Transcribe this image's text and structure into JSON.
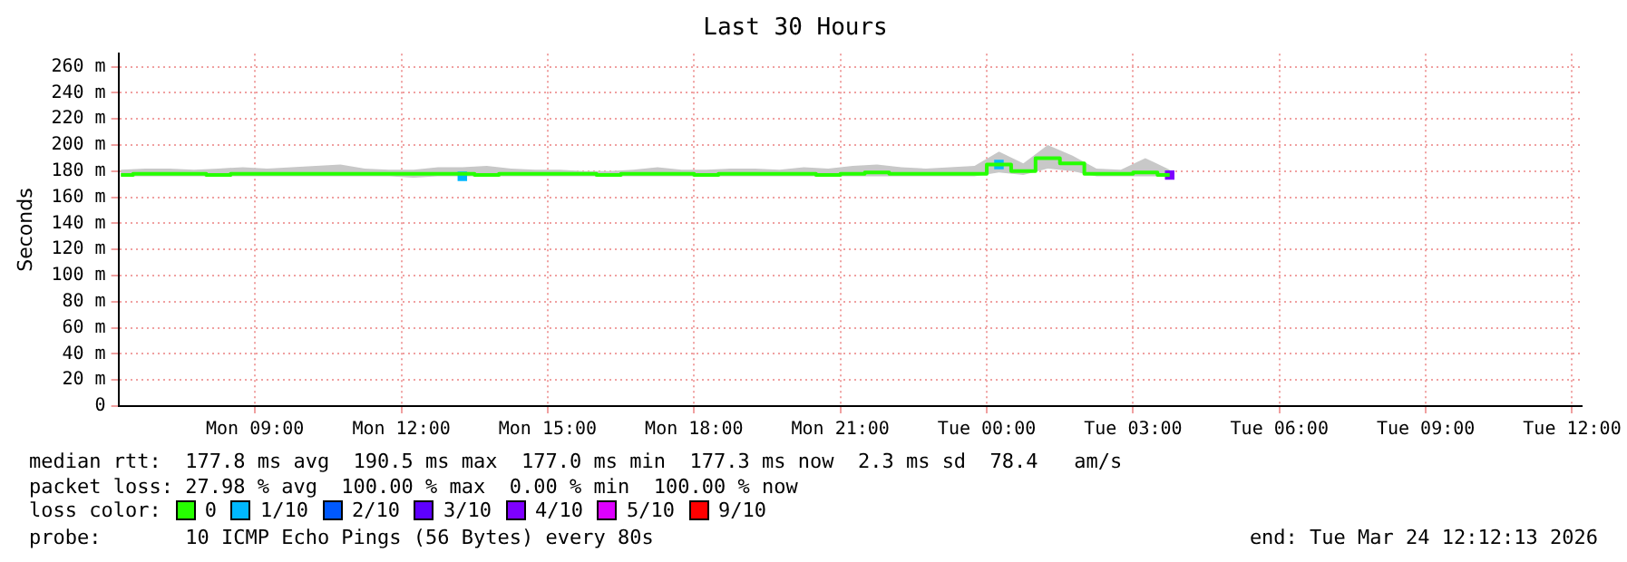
{
  "chart_data": {
    "type": "step",
    "title": "Last 30 Hours",
    "ylabel": "Seconds",
    "legend_title": "loss color:",
    "legend": "bottom",
    "grid": true,
    "xlim": [
      "2026-03-23T06:12",
      "2026-03-24T12:12"
    ],
    "xticks": [
      {
        "value": "2026-03-23T09:00",
        "label": "Mon 09:00"
      },
      {
        "value": "2026-03-23T12:00",
        "label": "Mon 12:00"
      },
      {
        "value": "2026-03-23T15:00",
        "label": "Mon 15:00"
      },
      {
        "value": "2026-03-23T18:00",
        "label": "Mon 18:00"
      },
      {
        "value": "2026-03-23T21:00",
        "label": "Mon 21:00"
      },
      {
        "value": "2026-03-24T00:00",
        "label": "Tue 00:00"
      },
      {
        "value": "2026-03-24T03:00",
        "label": "Tue 03:00"
      },
      {
        "value": "2026-03-24T06:00",
        "label": "Tue 06:00"
      },
      {
        "value": "2026-03-24T09:00",
        "label": "Tue 09:00"
      },
      {
        "value": "2026-03-24T12:00",
        "label": "Tue 12:00"
      }
    ],
    "ylim": [
      0,
      270
    ],
    "yticks": [
      0,
      {
        "value": 20,
        "label": "20 m"
      },
      {
        "value": 40,
        "label": "40 m"
      },
      {
        "value": 60,
        "label": "60 m"
      },
      {
        "value": 80,
        "label": "80 m"
      },
      {
        "value": 100,
        "label": "100 m"
      },
      {
        "value": 120,
        "label": "120 m"
      },
      {
        "value": 140,
        "label": "140 m"
      },
      {
        "value": 160,
        "label": "160 m"
      },
      {
        "value": 180,
        "label": "180 m"
      },
      {
        "value": 200,
        "label": "200 m"
      },
      {
        "value": 220,
        "label": "220 m"
      },
      {
        "value": 240,
        "label": "240 m"
      },
      {
        "value": 260,
        "label": "260 m"
      }
    ],
    "x": [
      "2026-03-23T06:15",
      "2026-03-23T06:45",
      "2026-03-23T07:15",
      "2026-03-23T07:45",
      "2026-03-23T08:15",
      "2026-03-23T08:45",
      "2026-03-23T09:15",
      "2026-03-23T09:45",
      "2026-03-23T10:15",
      "2026-03-23T10:45",
      "2026-03-23T11:15",
      "2026-03-23T11:45",
      "2026-03-23T12:15",
      "2026-03-23T12:45",
      "2026-03-23T13:15",
      "2026-03-23T13:45",
      "2026-03-23T14:15",
      "2026-03-23T14:45",
      "2026-03-23T15:15",
      "2026-03-23T15:45",
      "2026-03-23T16:15",
      "2026-03-23T16:45",
      "2026-03-23T17:15",
      "2026-03-23T17:45",
      "2026-03-23T18:15",
      "2026-03-23T18:45",
      "2026-03-23T19:15",
      "2026-03-23T19:45",
      "2026-03-23T20:15",
      "2026-03-23T20:45",
      "2026-03-23T21:15",
      "2026-03-23T21:45",
      "2026-03-23T22:15",
      "2026-03-23T22:45",
      "2026-03-23T23:15",
      "2026-03-23T23:45",
      "2026-03-24T00:15",
      "2026-03-24T00:45",
      "2026-03-24T01:15",
      "2026-03-24T01:45",
      "2026-03-24T02:15",
      "2026-03-24T02:45",
      "2026-03-24T03:15",
      "2026-03-24T03:45"
    ],
    "series": [
      {
        "name": "0",
        "color": "#26ff00",
        "values": [
          177,
          178,
          178,
          178,
          177,
          178,
          178,
          178,
          178,
          178,
          178,
          178,
          178,
          178,
          178,
          177,
          178,
          178,
          178,
          178,
          177,
          178,
          178,
          178,
          177,
          178,
          178,
          178,
          178,
          177,
          178,
          179,
          178,
          178,
          178,
          178,
          185,
          180,
          190,
          186,
          178,
          178,
          179,
          177
        ],
        "lower": [
          176,
          176,
          176,
          176,
          176,
          176,
          176,
          176,
          176,
          176,
          176,
          176,
          175,
          176,
          176,
          176,
          176,
          176,
          176,
          176,
          176,
          176,
          176,
          176,
          176,
          176,
          176,
          176,
          176,
          176,
          176,
          176,
          176,
          176,
          176,
          176,
          179,
          177,
          182,
          180,
          176,
          176,
          176,
          176
        ],
        "upper": [
          181,
          182,
          182,
          181,
          182,
          183,
          182,
          183,
          184,
          185,
          182,
          181,
          181,
          183,
          183,
          184,
          182,
          181,
          181,
          180,
          180,
          181,
          183,
          181,
          181,
          182,
          182,
          181,
          183,
          182,
          184,
          185,
          183,
          182,
          183,
          184,
          195,
          186,
          200,
          192,
          182,
          181,
          190,
          181
        ]
      },
      {
        "name": "1/10",
        "type": "scatter",
        "marker": "square",
        "color": "#00b8ff",
        "values": [
          null,
          null,
          null,
          null,
          null,
          null,
          null,
          null,
          null,
          null,
          null,
          null,
          null,
          null,
          176,
          null,
          null,
          null,
          null,
          null,
          null,
          null,
          null,
          null,
          null,
          null,
          null,
          null,
          null,
          null,
          null,
          null,
          null,
          null,
          null,
          null,
          185,
          null,
          null,
          null,
          null,
          null,
          null,
          null
        ]
      },
      {
        "name": "2/10",
        "type": "scatter",
        "marker": "square",
        "color": "#0059ff",
        "values": [
          null,
          null,
          null,
          null,
          null,
          null,
          null,
          null,
          null,
          null,
          null,
          null,
          null,
          null,
          null,
          null,
          null,
          null,
          null,
          null,
          null,
          null,
          null,
          null,
          null,
          null,
          null,
          null,
          null,
          null,
          null,
          null,
          null,
          null,
          null,
          null,
          null,
          null,
          null,
          null,
          null,
          null,
          null,
          null
        ]
      },
      {
        "name": "3/10",
        "type": "scatter",
        "marker": "square",
        "color": "#5e00ff",
        "values": [
          null,
          null,
          null,
          null,
          null,
          null,
          null,
          null,
          null,
          null,
          null,
          null,
          null,
          null,
          null,
          null,
          null,
          null,
          null,
          null,
          null,
          null,
          null,
          null,
          null,
          null,
          null,
          null,
          null,
          null,
          null,
          null,
          null,
          null,
          null,
          null,
          null,
          null,
          null,
          null,
          null,
          null,
          null,
          null
        ]
      },
      {
        "name": "4/10",
        "type": "scatter",
        "marker": "square",
        "color": "#7e00ff",
        "values": [
          null,
          null,
          null,
          null,
          null,
          null,
          null,
          null,
          null,
          null,
          null,
          null,
          null,
          null,
          null,
          null,
          null,
          null,
          null,
          null,
          null,
          null,
          null,
          null,
          null,
          null,
          null,
          null,
          null,
          null,
          null,
          null,
          null,
          null,
          null,
          null,
          null,
          null,
          null,
          null,
          null,
          null,
          null,
          177
        ]
      },
      {
        "name": "5/10",
        "type": "scatter",
        "marker": "square",
        "color": "#dd00ff",
        "values": [
          null,
          null,
          null,
          null,
          null,
          null,
          null,
          null,
          null,
          null,
          null,
          null,
          null,
          null,
          null,
          null,
          null,
          null,
          null,
          null,
          null,
          null,
          null,
          null,
          null,
          null,
          null,
          null,
          null,
          null,
          null,
          null,
          null,
          null,
          null,
          null,
          null,
          null,
          null,
          null,
          null,
          null,
          null,
          null
        ]
      },
      {
        "name": "9/10",
        "type": "scatter",
        "marker": "square",
        "color": "#ff0000",
        "values": [
          null,
          null,
          null,
          null,
          null,
          null,
          null,
          null,
          null,
          null,
          null,
          null,
          null,
          null,
          null,
          null,
          null,
          null,
          null,
          null,
          null,
          null,
          null,
          null,
          null,
          null,
          null,
          null,
          null,
          null,
          null,
          null,
          null,
          null,
          null,
          null,
          null,
          null,
          null,
          null,
          null,
          null,
          null,
          null
        ]
      }
    ],
    "annotations": [
      "median rtt:  177.8 ms avg  190.5 ms max  177.0 ms min  177.3 ms now  2.3 ms sd  78.4   am/s",
      "packet loss: 27.98 % avg  100.00 % max  0.00 % min  100.00 % now",
      "probe:       10 ICMP Echo Pings (56 Bytes) every 80s",
      "end: Tue Mar 24 12:12:13 2026"
    ]
  }
}
